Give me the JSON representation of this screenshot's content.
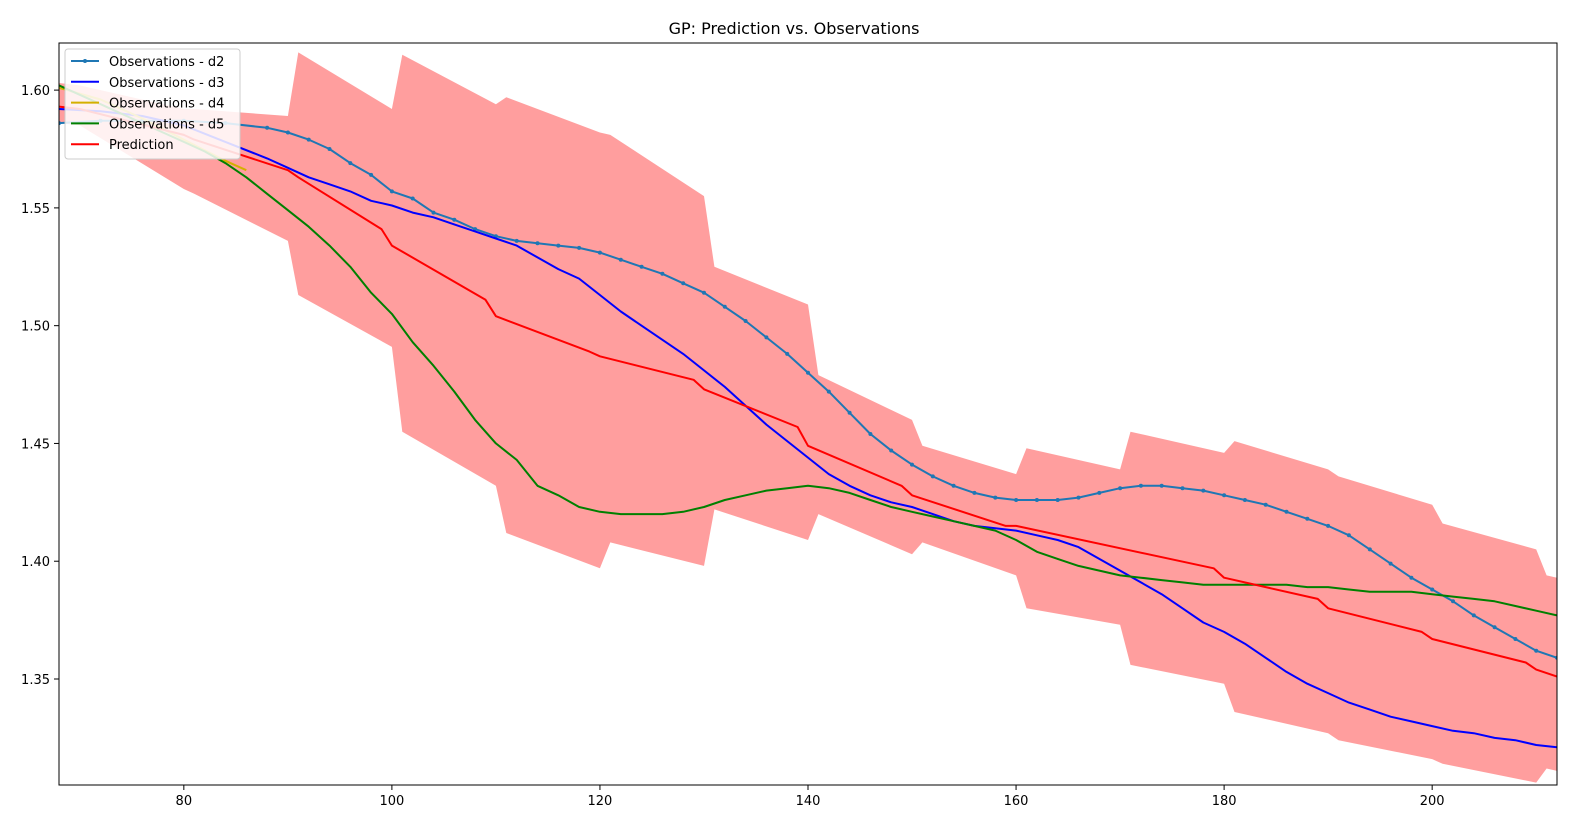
{
  "chart_data": {
    "type": "line",
    "title": "GP: Prediction vs. Observations",
    "xlabel": "",
    "ylabel": "",
    "xlim": [
      68,
      212
    ],
    "ylim": [
      1.305,
      1.62
    ],
    "grid": false,
    "legend_position": "top-left",
    "x_ticks": [
      80,
      100,
      120,
      140,
      160,
      180,
      200
    ],
    "y_ticks": [
      1.35,
      1.4,
      1.45,
      1.5,
      1.55,
      1.6
    ],
    "x_tick_labels": [
      "80",
      "100",
      "120",
      "140",
      "160",
      "180",
      "200"
    ],
    "y_tick_labels": [
      "1.35",
      "1.40",
      "1.45",
      "1.50",
      "1.55",
      "1.60"
    ],
    "series": [
      {
        "name": "Observations - d2",
        "color": "#1f77b4",
        "marker": "dot",
        "x": [
          68,
          72,
          76,
          80,
          84,
          88,
          90,
          92,
          94,
          96,
          98,
          100,
          102,
          104,
          106,
          108,
          110,
          112,
          114,
          116,
          118,
          120,
          122,
          124,
          126,
          128,
          130,
          132,
          134,
          136,
          138,
          140,
          142,
          144,
          146,
          148,
          150,
          152,
          154,
          156,
          158,
          160,
          162,
          164,
          166,
          168,
          170,
          172,
          174,
          176,
          178,
          180,
          182,
          184,
          186,
          188,
          190,
          192,
          194,
          196,
          198,
          200,
          202,
          204,
          206,
          208,
          210,
          212
        ],
        "y": [
          1.586,
          1.587,
          1.587,
          1.587,
          1.586,
          1.584,
          1.582,
          1.579,
          1.575,
          1.569,
          1.564,
          1.557,
          1.554,
          1.548,
          1.545,
          1.541,
          1.538,
          1.536,
          1.535,
          1.534,
          1.533,
          1.531,
          1.528,
          1.525,
          1.522,
          1.518,
          1.514,
          1.508,
          1.502,
          1.495,
          1.488,
          1.48,
          1.472,
          1.463,
          1.454,
          1.447,
          1.441,
          1.436,
          1.432,
          1.429,
          1.427,
          1.426,
          1.426,
          1.426,
          1.427,
          1.429,
          1.431,
          1.432,
          1.432,
          1.431,
          1.43,
          1.428,
          1.426,
          1.424,
          1.421,
          1.418,
          1.415,
          1.411,
          1.405,
          1.399,
          1.393,
          1.388,
          1.383,
          1.377,
          1.372,
          1.367,
          1.362,
          1.359
        ]
      },
      {
        "name": "Observations - d3",
        "color": "#0000ff",
        "marker": "",
        "x": [
          68,
          72,
          76,
          80,
          84,
          88,
          90,
          92,
          94,
          96,
          98,
          100,
          102,
          104,
          106,
          108,
          110,
          112,
          114,
          116,
          118,
          120,
          122,
          124,
          126,
          128,
          130,
          132,
          134,
          136,
          138,
          140,
          142,
          144,
          146,
          148,
          150,
          152,
          154,
          156,
          158,
          160,
          162,
          164,
          166,
          168,
          170,
          172,
          174,
          176,
          178,
          180,
          182,
          184,
          186,
          188,
          190,
          192,
          194,
          196,
          198,
          200,
          202,
          204,
          206,
          208,
          210,
          212
        ],
        "y": [
          1.592,
          1.591,
          1.589,
          1.585,
          1.578,
          1.571,
          1.567,
          1.563,
          1.56,
          1.557,
          1.553,
          1.551,
          1.548,
          1.546,
          1.543,
          1.54,
          1.537,
          1.534,
          1.529,
          1.524,
          1.52,
          1.513,
          1.506,
          1.5,
          1.494,
          1.488,
          1.481,
          1.474,
          1.466,
          1.458,
          1.451,
          1.444,
          1.437,
          1.432,
          1.428,
          1.425,
          1.423,
          1.42,
          1.417,
          1.415,
          1.414,
          1.413,
          1.411,
          1.409,
          1.406,
          1.401,
          1.396,
          1.391,
          1.386,
          1.38,
          1.374,
          1.37,
          1.365,
          1.359,
          1.353,
          1.348,
          1.344,
          1.34,
          1.337,
          1.334,
          1.332,
          1.33,
          1.328,
          1.327,
          1.325,
          1.324,
          1.322,
          1.321
        ]
      },
      {
        "name": "Observations - d4",
        "color": "#d4b000",
        "marker": "",
        "x": [
          68,
          72,
          76,
          80,
          84,
          86
        ],
        "y": [
          1.601,
          1.596,
          1.588,
          1.579,
          1.57,
          1.566
        ]
      },
      {
        "name": "Observations - d5",
        "color": "#008000",
        "marker": "",
        "x": [
          68,
          70,
          72,
          74,
          76,
          78,
          80,
          82,
          84,
          86,
          88,
          90,
          92,
          94,
          96,
          98,
          100,
          102,
          104,
          106,
          108,
          110,
          112,
          114,
          116,
          118,
          120,
          122,
          124,
          126,
          128,
          130,
          132,
          134,
          136,
          138,
          140,
          142,
          144,
          146,
          148,
          150,
          152,
          154,
          156,
          158,
          160,
          162,
          164,
          166,
          168,
          170,
          172,
          174,
          176,
          178,
          180,
          182,
          184,
          186,
          188,
          190,
          192,
          194,
          196,
          198,
          200,
          202,
          204,
          206,
          208,
          210,
          212
        ],
        "y": [
          1.602,
          1.598,
          1.594,
          1.59,
          1.586,
          1.582,
          1.578,
          1.574,
          1.569,
          1.563,
          1.556,
          1.549,
          1.542,
          1.534,
          1.525,
          1.514,
          1.505,
          1.493,
          1.483,
          1.472,
          1.46,
          1.45,
          1.443,
          1.432,
          1.428,
          1.423,
          1.421,
          1.42,
          1.42,
          1.42,
          1.421,
          1.423,
          1.426,
          1.428,
          1.43,
          1.431,
          1.432,
          1.431,
          1.429,
          1.426,
          1.423,
          1.421,
          1.419,
          1.417,
          1.415,
          1.413,
          1.409,
          1.404,
          1.401,
          1.398,
          1.396,
          1.394,
          1.393,
          1.392,
          1.391,
          1.39,
          1.39,
          1.39,
          1.39,
          1.39,
          1.389,
          1.389,
          1.388,
          1.387,
          1.387,
          1.387,
          1.386,
          1.385,
          1.384,
          1.383,
          1.381,
          1.379,
          1.377
        ]
      },
      {
        "name": "Prediction",
        "color": "#ff0000",
        "marker": "",
        "x": [
          68,
          70,
          80,
          81,
          90,
          91,
          99,
          100,
          109,
          110,
          119,
          120,
          129,
          130,
          139,
          140,
          149,
          150,
          159,
          160,
          179,
          180,
          189,
          190,
          199,
          200,
          209,
          210,
          212
        ],
        "y": [
          1.593,
          1.592,
          1.581,
          1.579,
          1.566,
          1.563,
          1.541,
          1.534,
          1.511,
          1.504,
          1.489,
          1.487,
          1.477,
          1.473,
          1.457,
          1.449,
          1.432,
          1.428,
          1.415,
          1.415,
          1.397,
          1.393,
          1.384,
          1.38,
          1.37,
          1.367,
          1.357,
          1.354,
          1.351
        ]
      }
    ],
    "band": {
      "color": "#ff9999",
      "x": [
        68,
        70,
        80,
        81,
        90,
        91,
        100,
        101,
        110,
        111,
        120,
        121,
        130,
        131,
        140,
        141,
        150,
        151,
        160,
        161,
        170,
        171,
        180,
        181,
        190,
        191,
        200,
        201,
        210,
        211,
        212
      ],
      "upper": [
        1.603,
        1.602,
        1.592,
        1.592,
        1.589,
        1.616,
        1.592,
        1.615,
        1.594,
        1.597,
        1.582,
        1.581,
        1.555,
        1.525,
        1.509,
        1.479,
        1.46,
        1.449,
        1.437,
        1.448,
        1.439,
        1.455,
        1.446,
        1.451,
        1.439,
        1.436,
        1.424,
        1.416,
        1.405,
        1.394,
        1.393
      ],
      "lower": [
        1.586,
        1.585,
        1.558,
        1.556,
        1.536,
        1.513,
        1.491,
        1.455,
        1.432,
        1.412,
        1.397,
        1.408,
        1.398,
        1.422,
        1.409,
        1.42,
        1.403,
        1.408,
        1.394,
        1.38,
        1.373,
        1.356,
        1.348,
        1.336,
        1.327,
        1.324,
        1.316,
        1.314,
        1.306,
        1.312,
        1.311
      ]
    }
  }
}
